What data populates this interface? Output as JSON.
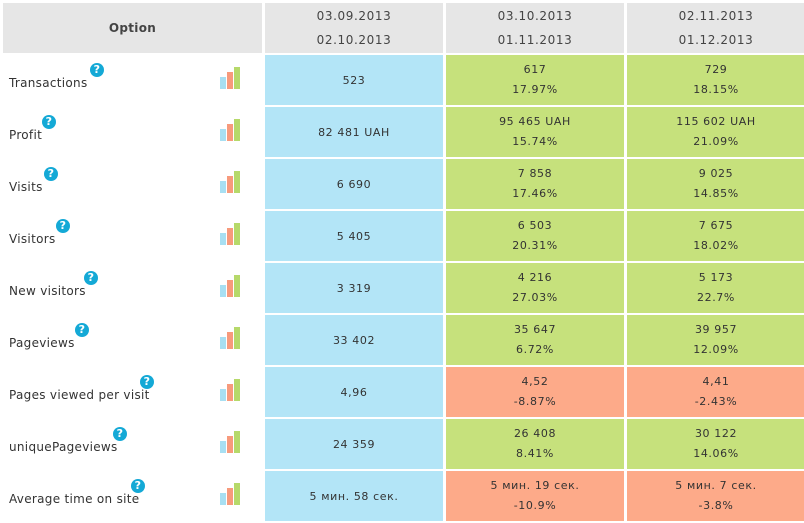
{
  "header": {
    "option_label": "Option",
    "periods": [
      {
        "start": "03.09.2013",
        "end": "02.10.2013"
      },
      {
        "start": "03.10.2013",
        "end": "01.11.2013"
      },
      {
        "start": "02.11.2013",
        "end": "01.12.2013"
      }
    ]
  },
  "help_glyph": "?",
  "colors": {
    "header_bg": "#e6e6e6",
    "base_bg": "#b3e5f7",
    "increase_bg": "#c6e17c",
    "decrease_bg": "#fdaa89",
    "help_icon": "#14a9d6"
  },
  "rows": [
    {
      "label": "Transactions",
      "base": "523",
      "p2": {
        "value": "617",
        "change": "17.97%",
        "status": "increase"
      },
      "p3": {
        "value": "729",
        "change": "18.15%",
        "status": "increase"
      }
    },
    {
      "label": "Profit",
      "base": "82 481 UAH",
      "p2": {
        "value": "95 465 UAH",
        "change": "15.74%",
        "status": "increase"
      },
      "p3": {
        "value": "115 602 UAH",
        "change": "21.09%",
        "status": "increase"
      }
    },
    {
      "label": "Visits",
      "base": "6 690",
      "p2": {
        "value": "7 858",
        "change": "17.46%",
        "status": "increase"
      },
      "p3": {
        "value": "9 025",
        "change": "14.85%",
        "status": "increase"
      }
    },
    {
      "label": "Visitors",
      "base": "5 405",
      "p2": {
        "value": "6 503",
        "change": "20.31%",
        "status": "increase"
      },
      "p3": {
        "value": "7 675",
        "change": "18.02%",
        "status": "increase"
      }
    },
    {
      "label": "New visitors",
      "base": "3 319",
      "p2": {
        "value": "4 216",
        "change": "27.03%",
        "status": "increase"
      },
      "p3": {
        "value": "5 173",
        "change": "22.7%",
        "status": "increase"
      }
    },
    {
      "label": "Pageviews",
      "base": "33 402",
      "p2": {
        "value": "35 647",
        "change": "6.72%",
        "status": "increase"
      },
      "p3": {
        "value": "39 957",
        "change": "12.09%",
        "status": "increase"
      }
    },
    {
      "label": "Pages viewed per visit",
      "base": "4,96",
      "p2": {
        "value": "4,52",
        "change": "-8.87%",
        "status": "decrease"
      },
      "p3": {
        "value": "4,41",
        "change": "-2.43%",
        "status": "decrease"
      }
    },
    {
      "label": "uniquePageviews",
      "base": "24 359",
      "p2": {
        "value": "26 408",
        "change": "8.41%",
        "status": "increase"
      },
      "p3": {
        "value": "30 122",
        "change": "14.06%",
        "status": "increase"
      }
    },
    {
      "label": "Average time on site",
      "base": "5 мин. 58 сек.",
      "p2": {
        "value": "5 мин. 19 сек.",
        "change": "-10.9%",
        "status": "decrease"
      },
      "p3": {
        "value": "5 мин. 7 сек.",
        "change": "-3.8%",
        "status": "decrease"
      }
    }
  ]
}
